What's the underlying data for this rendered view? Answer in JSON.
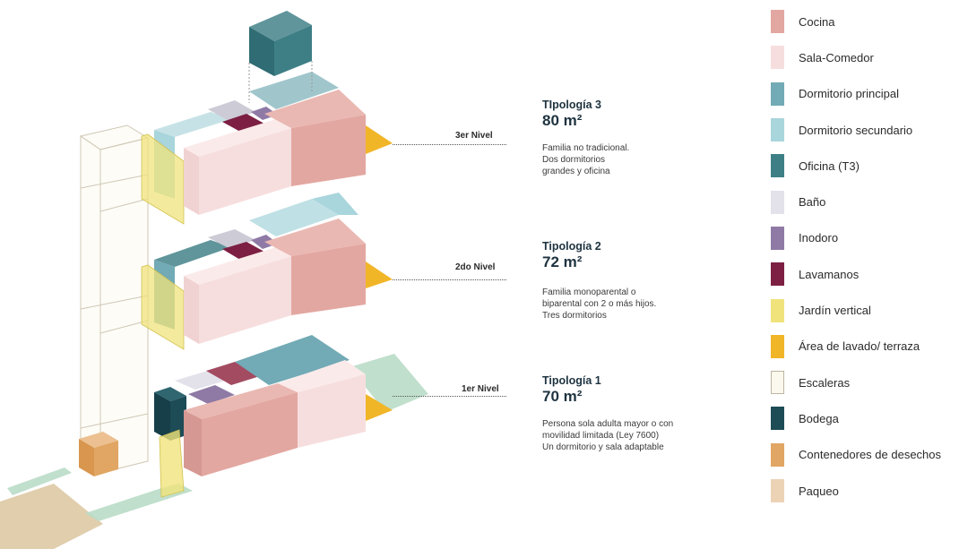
{
  "levels": [
    {
      "label": "3er Nivel",
      "typology": "TIpología 3",
      "area": "80 m²",
      "description": "Familia no tradicional.\nDos dormitorios\ngrandes y oficina"
    },
    {
      "label": "2do Nivel",
      "typology": "Tipología 2",
      "area": "72 m²",
      "description": "Familia monoparental o\nbiparental con 2 o más hijos.\nTres dormitorios"
    },
    {
      "label": "1er Nivel",
      "typology": "Tipología 1",
      "area": "70 m²",
      "description": "Persona sola adulta mayor o con\nmovilidad limitada (Ley 7600)\nUn dormitorio y sala adaptable"
    }
  ],
  "legend": [
    {
      "label": "Cocina",
      "color": "#e3a7a1"
    },
    {
      "label": "Sala-Comedor",
      "color": "#f7dede"
    },
    {
      "label": "Dormitorio principal",
      "color": "#72aab5"
    },
    {
      "label": "Dormitorio secundario",
      "color": "#a9d5dc"
    },
    {
      "label": "Oficina (T3)",
      "color": "#3e7f86"
    },
    {
      "label": "Baño",
      "color": "#e3e1ea"
    },
    {
      "label": "Inodoro",
      "color": "#8f7aa5"
    },
    {
      "label": "Lavamanos",
      "color": "#7c1f42"
    },
    {
      "label": "Jardín vertical",
      "color": "#f0e37c"
    },
    {
      "label": "Área de lavado/ terraza",
      "color": "#f1b528"
    },
    {
      "label": "Escaleras",
      "color": "#fbf8ee"
    },
    {
      "label": "Bodega",
      "color": "#1d4c57"
    },
    {
      "label": "Contenedores de desechos",
      "color": "#e1a663"
    },
    {
      "label": "Paqueo",
      "color": "#ecd3b6"
    }
  ]
}
